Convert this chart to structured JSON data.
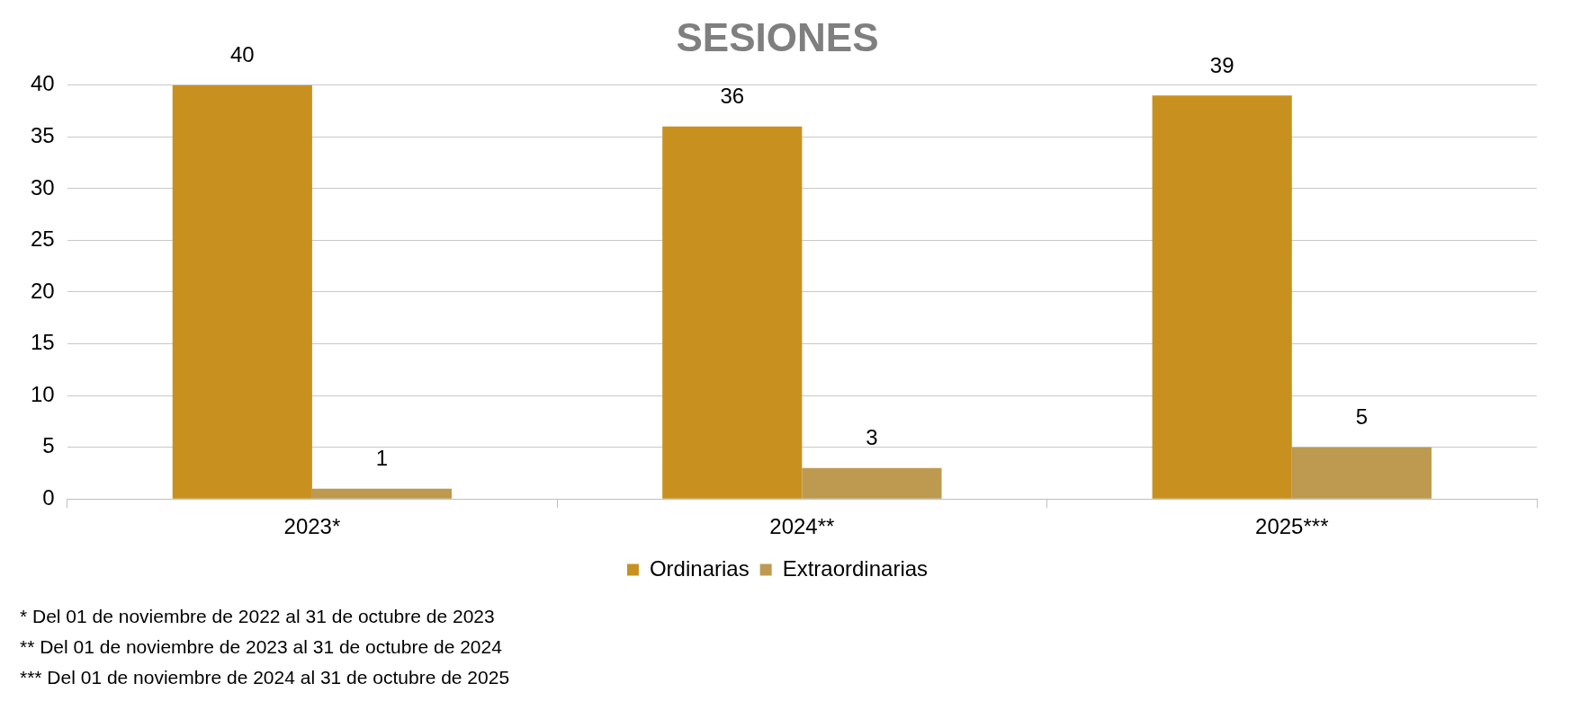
{
  "chart_data": {
    "type": "bar",
    "title": "SESIONES",
    "categories": [
      "2023*",
      "2024**",
      "2025***"
    ],
    "series": [
      {
        "name": "Ordinarias",
        "color": "#c8911f",
        "values": [
          40,
          36,
          39
        ]
      },
      {
        "name": "Extraordinarias",
        "color": "#bd9a4f",
        "values": [
          1,
          3,
          5
        ]
      }
    ],
    "ylim": [
      0,
      40
    ],
    "yticks": [
      0,
      5,
      10,
      15,
      20,
      25,
      30,
      35,
      40
    ],
    "grid": "y",
    "legend": "bottom",
    "data_labels": true,
    "annotations": [
      "* Del 01 de noviembre de 2022 al 31 de octubre de 2023",
      "** Del 01 de noviembre de 2023 al 31 de octubre de 2024",
      "*** Del 01 de noviembre de 2024 al 31 de octubre de 2025"
    ]
  }
}
